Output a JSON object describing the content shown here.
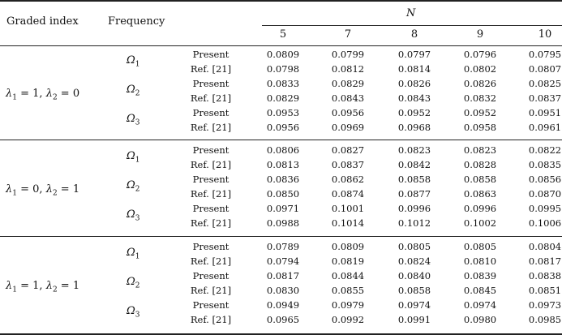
{
  "table": {
    "header": {
      "graded_index": "Graded index",
      "frequency": "Frequency",
      "n_label": "N",
      "n_values": [
        "5",
        "7",
        "8",
        "9",
        "10"
      ]
    },
    "groups": [
      {
        "graded_index": "λ1 = 1, λ2 = 0",
        "frequencies": [
          {
            "label": "Ω1",
            "rows": [
              {
                "method": "Present",
                "values": [
                  "0.0809",
                  "0.0799",
                  "0.0797",
                  "0.0796",
                  "0.0795"
                ]
              },
              {
                "method": "Ref. [21]",
                "values": [
                  "0.0798",
                  "0.0812",
                  "0.0814",
                  "0.0802",
                  "0.0807"
                ]
              }
            ]
          },
          {
            "label": "Ω2",
            "rows": [
              {
                "method": "Present",
                "values": [
                  "0.0833",
                  "0.0829",
                  "0.0826",
                  "0.0826",
                  "0.0825"
                ]
              },
              {
                "method": "Ref. [21]",
                "values": [
                  "0.0829",
                  "0.0843",
                  "0.0843",
                  "0.0832",
                  "0.0837"
                ]
              }
            ]
          },
          {
            "label": "Ω3",
            "rows": [
              {
                "method": "Present",
                "values": [
                  "0.0953",
                  "0.0956",
                  "0.0952",
                  "0.0952",
                  "0.0951"
                ]
              },
              {
                "method": "Ref. [21]",
                "values": [
                  "0.0956",
                  "0.0969",
                  "0.0968",
                  "0.0958",
                  "0.0961"
                ]
              }
            ]
          }
        ]
      },
      {
        "graded_index": "λ1 = 0, λ2 = 1",
        "frequencies": [
          {
            "label": "Ω1",
            "rows": [
              {
                "method": "Present",
                "values": [
                  "0.0806",
                  "0.0827",
                  "0.0823",
                  "0.0823",
                  "0.0822"
                ]
              },
              {
                "method": "Ref. [21]",
                "values": [
                  "0.0813",
                  "0.0837",
                  "0.0842",
                  "0.0828",
                  "0.0835"
                ]
              }
            ]
          },
          {
            "label": "Ω2",
            "rows": [
              {
                "method": "Present",
                "values": [
                  "0.0836",
                  "0.0862",
                  "0.0858",
                  "0.0858",
                  "0.0856"
                ]
              },
              {
                "method": "Ref. [21]",
                "values": [
                  "0.0850",
                  "0.0874",
                  "0.0877",
                  "0.0863",
                  "0.0870"
                ]
              }
            ]
          },
          {
            "label": "Ω3",
            "rows": [
              {
                "method": "Present",
                "values": [
                  "0.0971",
                  "0.1001",
                  "0.0996",
                  "0.0996",
                  "0.0995"
                ]
              },
              {
                "method": "Ref. [21]",
                "values": [
                  "0.0988",
                  "0.1014",
                  "0.1012",
                  "0.1002",
                  "0.1006"
                ]
              }
            ]
          }
        ]
      },
      {
        "graded_index": "λ1 = 1, λ2 = 1",
        "frequencies": [
          {
            "label": "Ω1",
            "rows": [
              {
                "method": "Present",
                "values": [
                  "0.0789",
                  "0.0809",
                  "0.0805",
                  "0.0805",
                  "0.0804"
                ]
              },
              {
                "method": "Ref. [21]",
                "values": [
                  "0.0794",
                  "0.0819",
                  "0.0824",
                  "0.0810",
                  "0.0817"
                ]
              }
            ]
          },
          {
            "label": "Ω2",
            "rows": [
              {
                "method": "Present",
                "values": [
                  "0.0817",
                  "0.0844",
                  "0.0840",
                  "0.0839",
                  "0.0838"
                ]
              },
              {
                "method": "Ref. [21]",
                "values": [
                  "0.0830",
                  "0.0855",
                  "0.0858",
                  "0.0845",
                  "0.0851"
                ]
              }
            ]
          },
          {
            "label": "Ω3",
            "rows": [
              {
                "method": "Present",
                "values": [
                  "0.0949",
                  "0.0979",
                  "0.0974",
                  "0.0974",
                  "0.0973"
                ]
              },
              {
                "method": "Ref. [21]",
                "values": [
                  "0.0965",
                  "0.0992",
                  "0.0991",
                  "0.0980",
                  "0.0985"
                ]
              }
            ]
          }
        ]
      }
    ]
  }
}
